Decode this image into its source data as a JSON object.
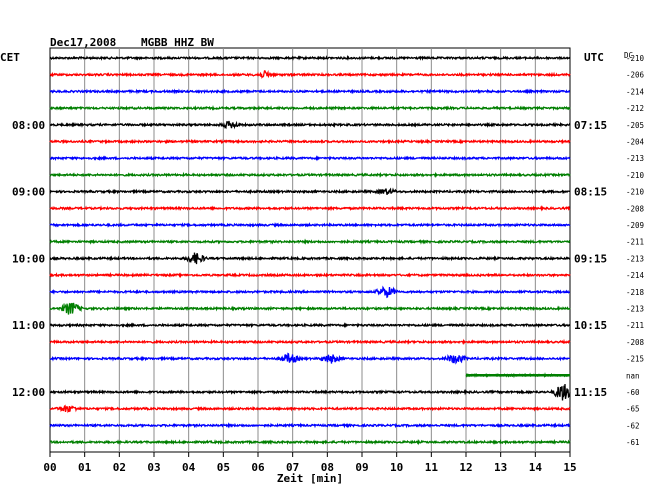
{
  "header": {
    "date": "Dec17,2008",
    "station": "MGBB HHZ BW",
    "left_zone": "CET",
    "right_zone": "UTC",
    "dc_label": "DC"
  },
  "chart_data": {
    "type": "line",
    "title": "Dec17,2008   MGBB HHZ BW",
    "xlabel": "Zeit [min]",
    "x_ticks": [
      "00",
      "01",
      "02",
      "03",
      "04",
      "05",
      "06",
      "07",
      "08",
      "09",
      "10",
      "11",
      "12",
      "13",
      "14",
      "15"
    ],
    "xlim": [
      0,
      15
    ],
    "grid": true,
    "colors": [
      "#000000",
      "#ff0000",
      "#0000ff",
      "#007f00"
    ],
    "rows": [
      {
        "cet": "",
        "utc": "",
        "dc": "-210",
        "color": "black",
        "events": []
      },
      {
        "cet": "",
        "utc": "",
        "dc": "-206",
        "color": "red",
        "events": [
          {
            "t": 6.2,
            "amp": 1.4
          }
        ]
      },
      {
        "cet": "",
        "utc": "",
        "dc": "-214",
        "color": "blue",
        "events": []
      },
      {
        "cet": "",
        "utc": "",
        "dc": "-212",
        "color": "green",
        "events": []
      },
      {
        "cet": "08:00",
        "utc": "07:15",
        "dc": "-205",
        "color": "black",
        "events": [
          {
            "t": 5.2,
            "amp": 1.5
          }
        ]
      },
      {
        "cet": "",
        "utc": "",
        "dc": "-204",
        "color": "red",
        "events": []
      },
      {
        "cet": "",
        "utc": "",
        "dc": "-213",
        "color": "blue",
        "events": []
      },
      {
        "cet": "",
        "utc": "",
        "dc": "-210",
        "color": "green",
        "events": []
      },
      {
        "cet": "09:00",
        "utc": "08:15",
        "dc": "-210",
        "color": "black",
        "events": [
          {
            "t": 9.7,
            "amp": 1.2
          }
        ]
      },
      {
        "cet": "",
        "utc": "",
        "dc": "-208",
        "color": "red",
        "events": []
      },
      {
        "cet": "",
        "utc": "",
        "dc": "-209",
        "color": "blue",
        "events": []
      },
      {
        "cet": "",
        "utc": "",
        "dc": "-211",
        "color": "green",
        "events": []
      },
      {
        "cet": "10:00",
        "utc": "09:15",
        "dc": "-213",
        "color": "black",
        "events": [
          {
            "t": 4.2,
            "amp": 2.5
          }
        ]
      },
      {
        "cet": "",
        "utc": "",
        "dc": "-214",
        "color": "red",
        "events": []
      },
      {
        "cet": "",
        "utc": "",
        "dc": "-218",
        "color": "blue",
        "events": [
          {
            "t": 9.7,
            "amp": 2.5
          }
        ]
      },
      {
        "cet": "",
        "utc": "",
        "dc": "-213",
        "color": "green",
        "events": [
          {
            "t": 0.6,
            "amp": 3.0
          }
        ]
      },
      {
        "cet": "11:00",
        "utc": "10:15",
        "dc": "-211",
        "color": "black",
        "events": []
      },
      {
        "cet": "",
        "utc": "",
        "dc": "-208",
        "color": "red",
        "events": []
      },
      {
        "cet": "",
        "utc": "",
        "dc": "-215",
        "color": "blue",
        "events": [
          {
            "t": 6.9,
            "amp": 2.2
          },
          {
            "t": 8.1,
            "amp": 2.0
          },
          {
            "t": 11.7,
            "amp": 2.2
          }
        ]
      },
      {
        "cet": "",
        "utc": "",
        "dc": "nan",
        "color": "green",
        "start": 12.0,
        "events": []
      },
      {
        "cet": "12:00",
        "utc": "11:15",
        "dc": "-60",
        "color": "black",
        "events": [
          {
            "t": 14.8,
            "amp": 4.0
          }
        ]
      },
      {
        "cet": "",
        "utc": "",
        "dc": "-65",
        "color": "red",
        "events": [
          {
            "t": 0.5,
            "amp": 1.5
          }
        ]
      },
      {
        "cet": "",
        "utc": "",
        "dc": "-62",
        "color": "blue",
        "events": []
      },
      {
        "cet": "",
        "utc": "",
        "dc": "-61",
        "color": "green",
        "events": []
      }
    ]
  }
}
